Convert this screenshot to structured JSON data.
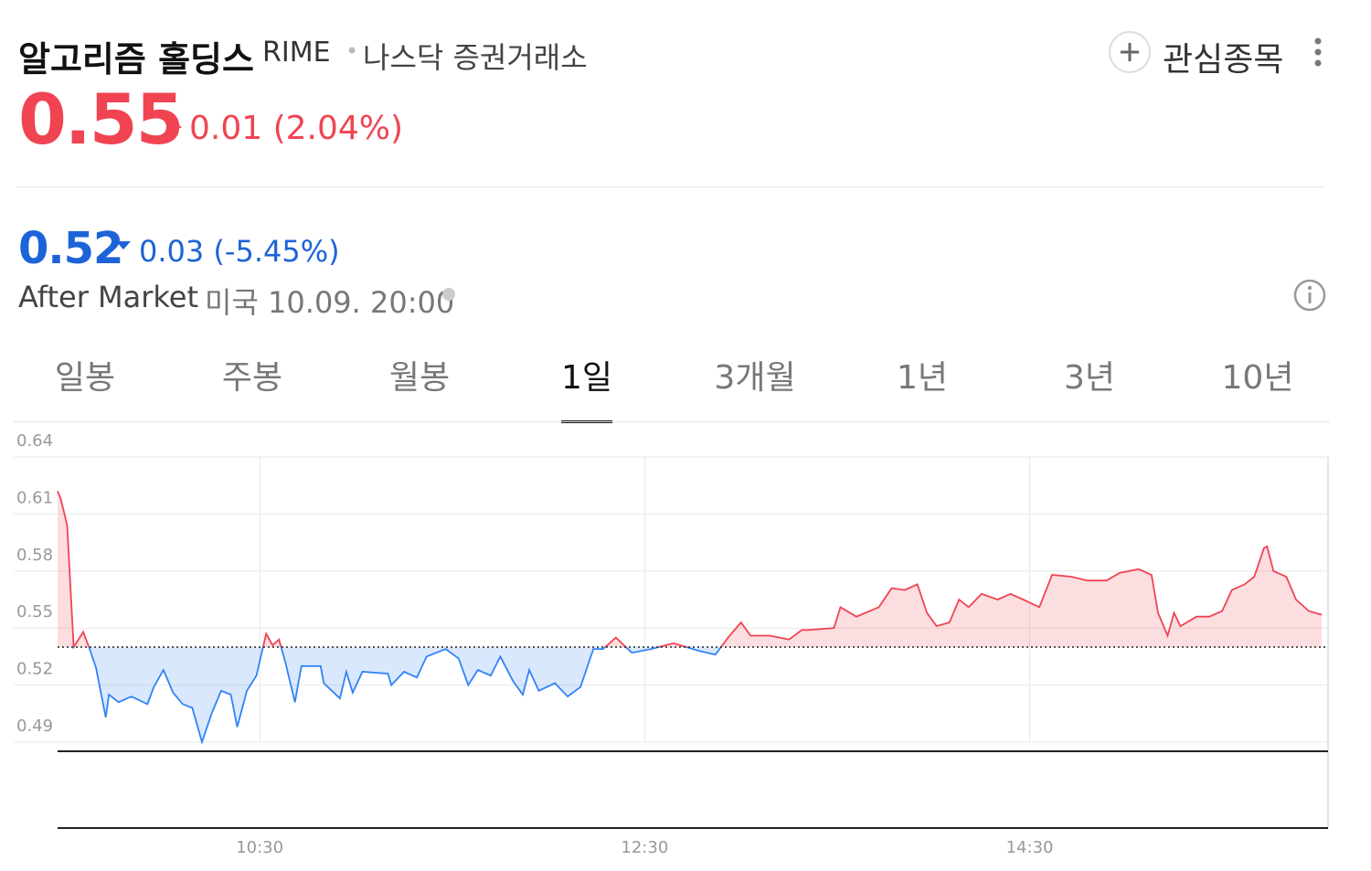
{
  "header": {
    "name": "알고리즘 홀딩스",
    "ticker": "RIME",
    "exchange": "나스닥 증권거래소",
    "watch": "관심종목"
  },
  "price": {
    "value": "0.55",
    "change": "0.01 (2.04%)"
  },
  "after_market": {
    "value": "0.52",
    "change": "0.03 (-5.45%)",
    "label": "After Market",
    "time": "미국 10.09. 20:00"
  },
  "tabs": {
    "items": [
      "일봉",
      "주봉",
      "월봉",
      "1일",
      "3개월",
      "1년",
      "3년",
      "10년"
    ],
    "selected": 3
  },
  "chart_data": {
    "type": "line",
    "x": [
      567,
      568,
      570,
      572,
      575,
      577,
      579,
      582,
      583,
      586,
      590,
      595,
      597,
      600,
      603,
      606,
      609,
      612,
      615,
      618,
      621,
      623,
      626,
      629,
      632,
      634,
      636,
      638,
      641,
      643,
      649,
      650,
      655,
      657,
      659,
      662,
      670,
      671,
      675,
      679,
      682,
      688,
      692,
      695,
      698,
      702,
      705,
      709,
      712,
      714,
      717,
      722,
      726,
      730,
      734,
      737,
      741,
      746,
      752,
      759,
      763,
      767,
      772,
      776,
      780,
      783,
      789,
      795,
      799,
      801,
      809,
      811,
      816,
      823,
      827,
      831,
      835,
      838,
      841,
      845,
      848,
      851,
      855,
      860,
      864,
      868,
      873,
      877,
      883,
      888,
      894,
      898,
      904,
      908,
      910,
      913,
      915,
      917,
      922,
      926,
      930,
      933,
      937,
      940,
      943,
      944,
      946,
      950,
      953,
      957,
      961
    ],
    "series": [
      {
        "values": [
          0.622,
          0.618,
          0.604,
          0.54,
          0.548,
          0.539,
          0.529,
          0.503,
          0.515,
          0.511,
          0.514,
          0.51,
          0.519,
          0.528,
          0.516,
          0.51,
          0.508,
          0.49,
          0.505,
          0.517,
          0.515,
          0.498,
          0.517,
          0.525,
          0.547,
          0.541,
          0.544,
          0.532,
          0.511,
          0.53,
          0.53,
          0.521,
          0.513,
          0.527,
          0.516,
          0.527,
          0.526,
          0.52,
          0.527,
          0.524,
          0.535,
          0.539,
          0.534,
          0.52,
          0.528,
          0.525,
          0.535,
          0.522,
          0.515,
          0.528,
          0.517,
          0.521,
          0.514,
          0.519,
          0.539,
          0.539,
          0.545,
          0.537,
          0.539,
          0.542,
          0.54,
          0.538,
          0.536,
          0.545,
          0.553,
          0.546,
          0.546,
          0.544,
          0.549,
          0.549,
          0.55,
          0.561,
          0.556,
          0.561,
          0.571,
          0.57,
          0.573,
          0.558,
          0.551,
          0.553,
          0.565,
          0.561,
          0.568,
          0.565,
          0.568,
          0.565,
          0.561,
          0.578,
          0.577,
          0.575,
          0.575,
          0.579,
          0.581,
          0.578,
          0.558,
          0.546,
          0.558,
          0.551,
          0.556,
          0.556,
          0.559,
          0.57,
          0.573,
          0.577,
          0.592,
          0.593,
          0.58,
          0.577,
          0.565,
          0.559,
          0.557
        ]
      }
    ],
    "baseline": 0.54,
    "up_color": "#f04452",
    "down_color": "#3182f6",
    "xlim": [
      567,
      963
    ],
    "xticks": [
      {
        "value": 630,
        "label": "10:30"
      },
      {
        "value": 750,
        "label": "12:30"
      },
      {
        "value": 870,
        "label": "14:30"
      }
    ],
    "ylim": [
      0.49,
      0.64
    ],
    "yticks": [
      0.49,
      0.52,
      0.55,
      0.58,
      0.61,
      0.64
    ],
    "grid": true
  }
}
